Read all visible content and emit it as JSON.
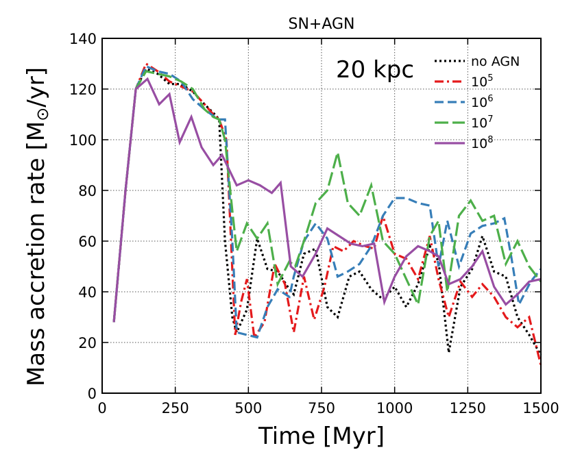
{
  "chart_data": {
    "type": "line",
    "title": "SN+AGN",
    "annotation": "20 kpc",
    "xlabel": "Time [Myr]",
    "ylabel_prefix": "Mass accretion rate [M",
    "ylabel_symbol": "⊙",
    "ylabel_suffix": "/yr]",
    "xlim": [
      0,
      1500
    ],
    "ylim": [
      0,
      140
    ],
    "xticks": [
      0,
      250,
      500,
      750,
      1000,
      1250,
      1500
    ],
    "yticks": [
      0,
      20,
      40,
      60,
      80,
      100,
      120,
      140
    ],
    "grid": true,
    "legend_position": "top-right",
    "series": [
      {
        "name": "no AGN",
        "legend_base": "no AGN",
        "legend_sup": "",
        "color": "#000000",
        "dash": "dotted",
        "x": [
          40,
          80,
          115,
          150,
          190,
          230,
          270,
          310,
          350,
          385,
          400,
          420,
          445,
          460,
          495,
          530,
          565,
          600,
          640,
          655,
          690,
          730,
          770,
          805,
          845,
          880,
          920,
          960,
          1000,
          1040,
          1080,
          1120,
          1150,
          1185,
          1225,
          1265,
          1300,
          1340,
          1380,
          1420,
          1460,
          1500
        ],
        "y": [
          28,
          80,
          120,
          128,
          126,
          122,
          122,
          119,
          114,
          110,
          108,
          60,
          30,
          24,
          33,
          61,
          49,
          48,
          41,
          39,
          55,
          57,
          34,
          30,
          46,
          48,
          41,
          37,
          42,
          34,
          43,
          58,
          52,
          16,
          42,
          49,
          62,
          48,
          46,
          30,
          23,
          15
        ]
      },
      {
        "name": "10^5",
        "legend_base": "10",
        "legend_sup": "5",
        "color": "#e41a1c",
        "dash": "dashdot",
        "x": [
          40,
          80,
          115,
          150,
          190,
          230,
          270,
          310,
          350,
          380,
          400,
          425,
          440,
          455,
          475,
          495,
          520,
          555,
          590,
          625,
          655,
          690,
          725,
          760,
          790,
          825,
          860,
          900,
          930,
          960,
          1000,
          1040,
          1080,
          1120,
          1150,
          1185,
          1225,
          1265,
          1300,
          1340,
          1380,
          1420,
          1460,
          1500
        ],
        "y": [
          28,
          80,
          120,
          130,
          127,
          123,
          121,
          119,
          114,
          110,
          108,
          100,
          62,
          23,
          36,
          45,
          22,
          28,
          51,
          43,
          24,
          46,
          29,
          42,
          58,
          56,
          60,
          58,
          57,
          70,
          55,
          53,
          45,
          62,
          45,
          30,
          44,
          38,
          43,
          38,
          30,
          26,
          30,
          11
        ]
      },
      {
        "name": "10^6",
        "legend_base": "10",
        "legend_sup": "6",
        "color": "#377eb8",
        "dash": "dashed",
        "x": [
          40,
          80,
          115,
          150,
          190,
          230,
          270,
          310,
          350,
          385,
          400,
          420,
          445,
          460,
          495,
          530,
          565,
          600,
          640,
          655,
          690,
          730,
          770,
          805,
          840,
          880,
          920,
          960,
          1000,
          1040,
          1080,
          1120,
          1150,
          1180,
          1220,
          1260,
          1300,
          1340,
          1375,
          1400,
          1425,
          1465,
          1500
        ],
        "y": [
          28,
          80,
          120,
          129,
          127,
          126,
          123,
          116,
          112,
          109,
          108,
          108,
          60,
          24,
          23,
          22,
          34,
          41,
          38,
          46,
          60,
          67,
          61,
          46,
          48,
          51,
          58,
          70,
          77,
          77,
          75,
          74,
          50,
          68,
          50,
          63,
          66,
          67,
          69,
          53,
          35,
          44,
          49
        ]
      },
      {
        "name": "10^7",
        "legend_base": "10",
        "legend_sup": "7",
        "color": "#4daf4a",
        "dash": "longdash",
        "x": [
          40,
          80,
          115,
          150,
          190,
          230,
          270,
          310,
          350,
          380,
          400,
          420,
          445,
          460,
          495,
          530,
          565,
          600,
          640,
          660,
          690,
          730,
          770,
          805,
          840,
          880,
          920,
          960,
          1000,
          1040,
          1080,
          1120,
          1150,
          1180,
          1220,
          1260,
          1300,
          1340,
          1380,
          1420,
          1460,
          1500
        ],
        "y": [
          28,
          80,
          120,
          127,
          126,
          125,
          123,
          120,
          112,
          109,
          108,
          100,
          72,
          56,
          67,
          61,
          67,
          43,
          52,
          50,
          60,
          75,
          80,
          95,
          75,
          70,
          82,
          60,
          55,
          45,
          35,
          62,
          68,
          40,
          70,
          76,
          68,
          70,
          51,
          60,
          50,
          44
        ]
      },
      {
        "name": "10^8",
        "legend_base": "10",
        "legend_sup": "8",
        "color": "#984ea3",
        "dash": "solid",
        "x": [
          40,
          80,
          115,
          155,
          195,
          230,
          265,
          305,
          340,
          380,
          410,
          460,
          500,
          540,
          580,
          610,
          645,
          685,
          730,
          770,
          810,
          850,
          890,
          930,
          965,
          1000,
          1040,
          1080,
          1120,
          1150,
          1185,
          1225,
          1265,
          1300,
          1340,
          1380,
          1420,
          1460,
          1500
        ],
        "y": [
          28,
          80,
          120,
          124,
          114,
          118,
          99,
          109,
          97,
          90,
          94,
          82,
          84,
          82,
          79,
          83,
          50,
          46,
          55,
          65,
          62,
          59,
          58,
          59,
          36,
          46,
          54,
          58,
          56,
          54,
          43,
          45,
          50,
          56,
          42,
          35,
          39,
          44,
          45
        ]
      }
    ]
  }
}
